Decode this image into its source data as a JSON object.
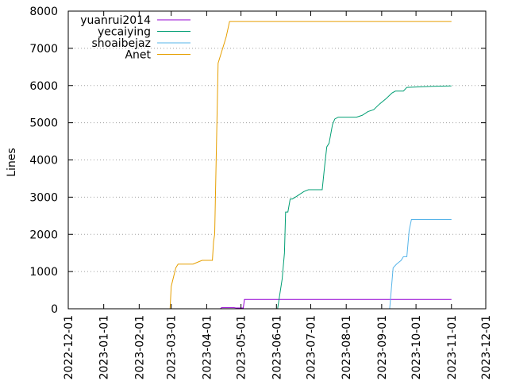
{
  "chart_data": {
    "type": "line",
    "title": "",
    "xlabel": "",
    "ylabel": "Lines",
    "ylim": [
      0,
      8000
    ],
    "xlim": [
      "2022-12-01",
      "2023-12-01"
    ],
    "y_ticks": [
      0,
      1000,
      2000,
      3000,
      4000,
      5000,
      6000,
      7000,
      8000
    ],
    "y_tick_labels": [
      "0",
      "1000",
      "2000",
      "3000",
      "4000",
      "5000",
      "6000",
      "7000",
      "8000"
    ],
    "x_ticks": [
      "2022-12-01",
      "2023-01-01",
      "2023-02-01",
      "2023-03-01",
      "2023-04-01",
      "2023-05-01",
      "2023-06-01",
      "2023-07-01",
      "2023-08-01",
      "2023-09-01",
      "2023-10-01",
      "2023-11-01",
      "2023-12-01"
    ],
    "grid": true,
    "legend_position": "top-left",
    "series": [
      {
        "name": "yuanrui2014",
        "color": "#9400d3",
        "points": [
          [
            "2023-04-13",
            0
          ],
          [
            "2023-04-14",
            30
          ],
          [
            "2023-04-25",
            30
          ],
          [
            "2023-04-27",
            20
          ],
          [
            "2023-05-03",
            20
          ],
          [
            "2023-05-04",
            250
          ],
          [
            "2023-11-01",
            250
          ]
        ]
      },
      {
        "name": "yecaiying",
        "color": "#009e73",
        "points": [
          [
            "2023-06-02",
            0
          ],
          [
            "2023-06-06",
            800
          ],
          [
            "2023-06-08",
            1500
          ],
          [
            "2023-06-09",
            2600
          ],
          [
            "2023-06-11",
            2600
          ],
          [
            "2023-06-13",
            2950
          ],
          [
            "2023-06-15",
            2950
          ],
          [
            "2023-06-20",
            3050
          ],
          [
            "2023-06-25",
            3150
          ],
          [
            "2023-06-29",
            3200
          ],
          [
            "2023-07-11",
            3200
          ],
          [
            "2023-07-13",
            3800
          ],
          [
            "2023-07-15",
            4350
          ],
          [
            "2023-07-17",
            4450
          ],
          [
            "2023-07-20",
            4950
          ],
          [
            "2023-07-22",
            5100
          ],
          [
            "2023-07-25",
            5150
          ],
          [
            "2023-08-10",
            5150
          ],
          [
            "2023-08-15",
            5200
          ],
          [
            "2023-08-20",
            5300
          ],
          [
            "2023-08-25",
            5350
          ],
          [
            "2023-08-30",
            5500
          ],
          [
            "2023-09-05",
            5650
          ],
          [
            "2023-09-10",
            5800
          ],
          [
            "2023-09-13",
            5850
          ],
          [
            "2023-09-20",
            5850
          ],
          [
            "2023-09-23",
            5950
          ],
          [
            "2023-10-01",
            5960
          ],
          [
            "2023-10-15",
            5980
          ],
          [
            "2023-11-01",
            5990
          ]
        ]
      },
      {
        "name": "shoaibejaz",
        "color": "#56b4e9",
        "points": [
          [
            "2023-09-08",
            0
          ],
          [
            "2023-09-11",
            1100
          ],
          [
            "2023-09-14",
            1200
          ],
          [
            "2023-09-18",
            1300
          ],
          [
            "2023-09-20",
            1400
          ],
          [
            "2023-09-23",
            1400
          ],
          [
            "2023-09-25",
            2100
          ],
          [
            "2023-09-27",
            2400
          ],
          [
            "2023-11-01",
            2400
          ]
        ]
      },
      {
        "name": "Anet",
        "color": "#e69f00",
        "points": [
          [
            "2023-02-28",
            0
          ],
          [
            "2023-03-01",
            600
          ],
          [
            "2023-03-05",
            1100
          ],
          [
            "2023-03-07",
            1200
          ],
          [
            "2023-03-20",
            1200
          ],
          [
            "2023-03-28",
            1300
          ],
          [
            "2023-04-06",
            1300
          ],
          [
            "2023-04-07",
            1800
          ],
          [
            "2023-04-08",
            2000
          ],
          [
            "2023-04-11",
            6600
          ],
          [
            "2023-04-15",
            7000
          ],
          [
            "2023-04-18",
            7300
          ],
          [
            "2023-04-21",
            7720
          ],
          [
            "2023-11-01",
            7720
          ]
        ]
      }
    ]
  }
}
